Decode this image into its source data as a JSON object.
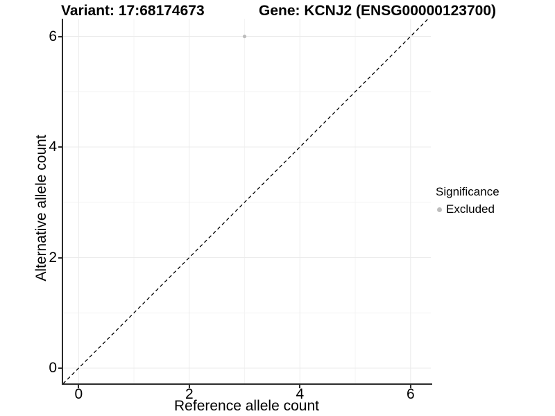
{
  "header": {
    "title_variant": "Variant: 17:68174673",
    "title_gene": "Gene: KCNJ2 (ENSG00000123700)"
  },
  "axes": {
    "x": {
      "label": "Reference allele count",
      "tick_labels": [
        "0",
        "2",
        "4",
        "6"
      ]
    },
    "y": {
      "label": "Alternative allele count",
      "tick_labels": [
        "0",
        "2",
        "4",
        "6"
      ]
    }
  },
  "legend": {
    "title": "Significance",
    "items": [
      {
        "label": "Excluded",
        "color": "#bdbdbd"
      }
    ]
  },
  "colors": {
    "axis_line": "#2b2b2b",
    "grid_major": "#ebebeb",
    "grid_minor": "#f4f4f4",
    "reference_line": "#000000",
    "point": "#bdbdbd",
    "background": "#ffffff"
  },
  "chart_data": {
    "type": "scatter",
    "title": "Variant: 17:68174673   Gene: KCNJ2 (ENSG00000123700)",
    "xlabel": "Reference allele count",
    "ylabel": "Alternative allele count",
    "xlim": [
      -0.29,
      6.36
    ],
    "ylim": [
      -0.28,
      6.32
    ],
    "x_ticks": [
      0,
      2,
      4,
      6
    ],
    "y_ticks": [
      0,
      2,
      4,
      6
    ],
    "x_minor_ticks": [
      1,
      3,
      5
    ],
    "y_minor_ticks": [
      1,
      3,
      5
    ],
    "grid": "on",
    "legend_position": "right",
    "series": [
      {
        "name": "Excluded",
        "color": "#bdbdbd",
        "points": [
          {
            "x": 3,
            "y": 6
          }
        ]
      }
    ],
    "reference_line": {
      "type": "identity",
      "slope": 1,
      "intercept": 0,
      "style": "dashed",
      "color": "#000000"
    }
  }
}
